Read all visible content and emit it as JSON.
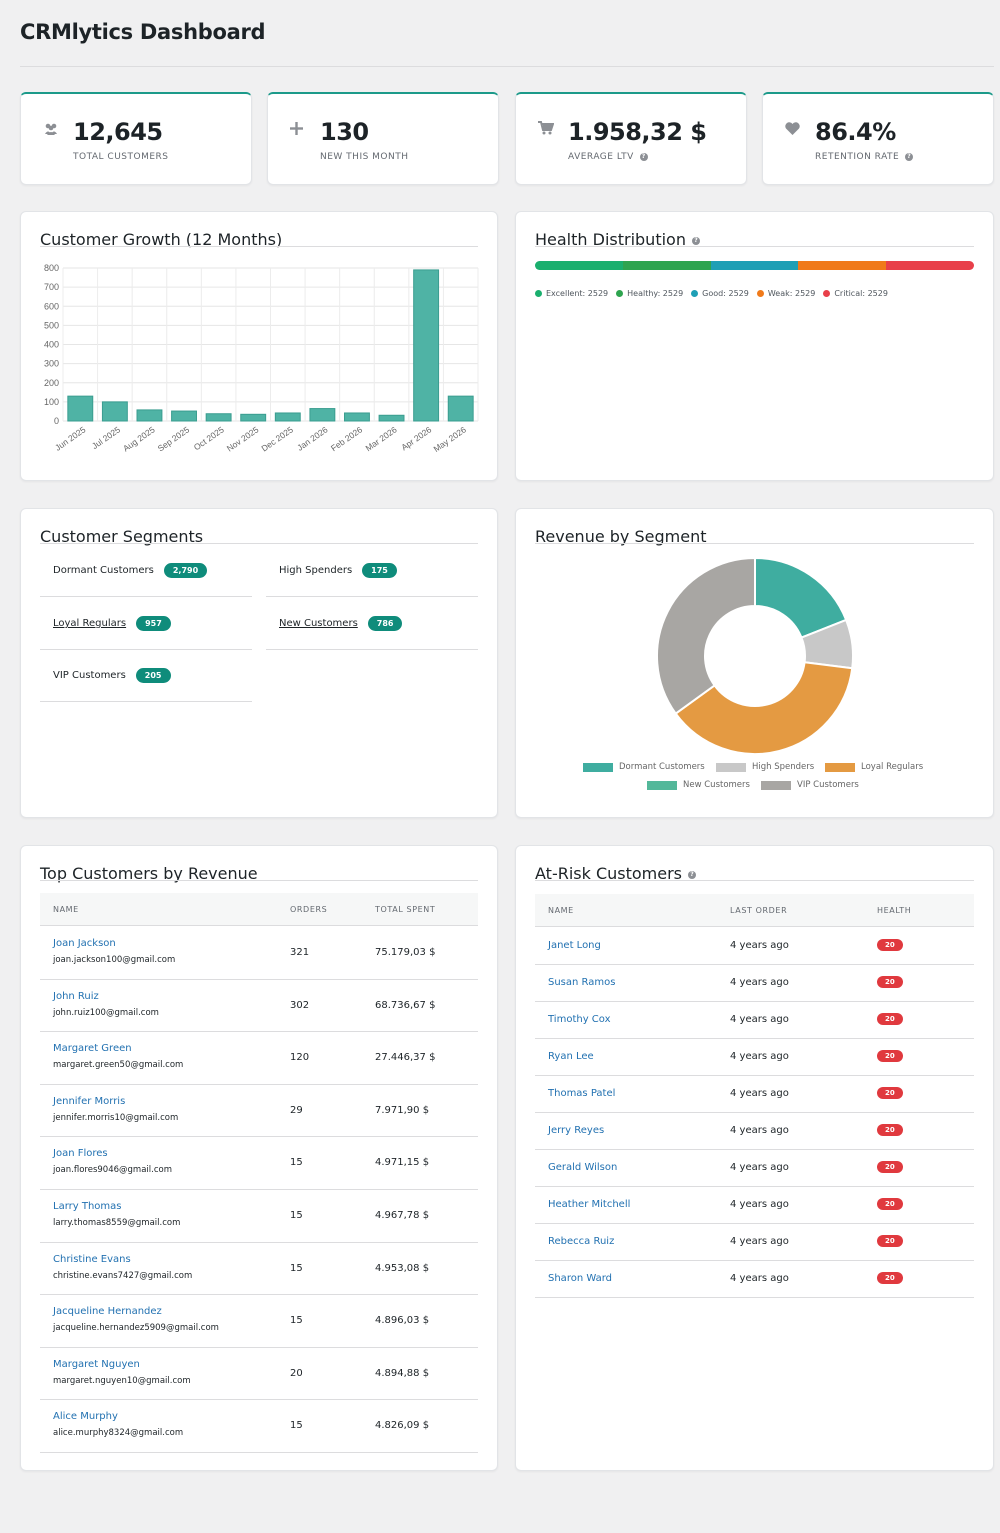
{
  "header": {
    "title": "CRMlytics Dashboard"
  },
  "kpis": [
    {
      "icon": "users-icon",
      "value": "12,645",
      "label": "TOTAL CUSTOMERS",
      "help": false
    },
    {
      "icon": "plus-icon",
      "value": "130",
      "label": "NEW THIS MONTH",
      "help": false
    },
    {
      "icon": "cart-icon",
      "value": "1.958,32 $",
      "label": "AVERAGE LTV",
      "help": true
    },
    {
      "icon": "heart-icon",
      "value": "86.4%",
      "label": "RETENTION RATE",
      "help": true
    }
  ],
  "growth": {
    "title": "Customer Growth (12 Months)"
  },
  "chart_data": {
    "type": "bar",
    "categories": [
      "Jun 2025",
      "Jul 2025",
      "Aug 2025",
      "Sep 2025",
      "Oct 2025",
      "Nov 2025",
      "Dec 2025",
      "Jan 2026",
      "Feb 2026",
      "Mar 2026",
      "Apr 2026",
      "May 2026"
    ],
    "values": [
      130,
      100,
      58,
      52,
      38,
      35,
      42,
      65,
      42,
      30,
      790,
      130
    ],
    "ylim": [
      0,
      800
    ],
    "yticks": [
      0,
      100,
      200,
      300,
      400,
      500,
      600,
      700,
      800
    ],
    "grid": true,
    "color": "#4fb3a5"
  },
  "health": {
    "title": "Health Distribution",
    "segments": [
      {
        "label": "Excellent: 2529",
        "color": "#1aaf6e"
      },
      {
        "label": "Healthy: 2529",
        "color": "#2ea44f"
      },
      {
        "label": "Good: 2529",
        "color": "#1e9fb5"
      },
      {
        "label": "Weak: 2529",
        "color": "#f07a1a"
      },
      {
        "label": "Critical: 2529",
        "color": "#e8404a"
      }
    ]
  },
  "segments": {
    "title": "Customer Segments",
    "items": [
      {
        "name": "Dormant Customers",
        "count": "2,790",
        "link": false
      },
      {
        "name": "High Spenders",
        "count": "175",
        "link": false
      },
      {
        "name": "Loyal Regulars",
        "count": "957",
        "link": true
      },
      {
        "name": "New Customers",
        "count": "786",
        "link": true
      },
      {
        "name": "VIP Customers",
        "count": "205",
        "link": false
      }
    ]
  },
  "revenue": {
    "title": "Revenue by Segment",
    "slices": [
      {
        "name": "Dormant Customers",
        "value": 19,
        "color": "#3fada0"
      },
      {
        "name": "High Spenders",
        "value": 8,
        "color": "#c8c8c8"
      },
      {
        "name": "Loyal Regulars",
        "value": 38,
        "color": "#e49a42"
      },
      {
        "name": "New Customers",
        "value": 0,
        "color": "#53b89a"
      },
      {
        "name": "VIP Customers",
        "value": 35,
        "color": "#a8a6a3"
      }
    ]
  },
  "top_customers": {
    "title": "Top Customers by Revenue",
    "columns": [
      "NAME",
      "ORDERS",
      "TOTAL SPENT"
    ],
    "rows": [
      {
        "name": "Joan Jackson",
        "email": "joan.jackson100@gmail.com",
        "orders": "321",
        "spent": "75.179,03 $"
      },
      {
        "name": "John Ruiz",
        "email": "john.ruiz100@gmail.com",
        "orders": "302",
        "spent": "68.736,67 $"
      },
      {
        "name": "Margaret Green",
        "email": "margaret.green50@gmail.com",
        "orders": "120",
        "spent": "27.446,37 $"
      },
      {
        "name": "Jennifer Morris",
        "email": "jennifer.morris10@gmail.com",
        "orders": "29",
        "spent": "7.971,90 $"
      },
      {
        "name": "Joan Flores",
        "email": "joan.flores9046@gmail.com",
        "orders": "15",
        "spent": "4.971,15 $"
      },
      {
        "name": "Larry Thomas",
        "email": "larry.thomas8559@gmail.com",
        "orders": "15",
        "spent": "4.967,78 $"
      },
      {
        "name": "Christine Evans",
        "email": "christine.evans7427@gmail.com",
        "orders": "15",
        "spent": "4.953,08 $"
      },
      {
        "name": "Jacqueline Hernandez",
        "email": "jacqueline.hernandez5909@gmail.com",
        "orders": "15",
        "spent": "4.896,03 $"
      },
      {
        "name": "Margaret Nguyen",
        "email": "margaret.nguyen10@gmail.com",
        "orders": "20",
        "spent": "4.894,88 $"
      },
      {
        "name": "Alice Murphy",
        "email": "alice.murphy8324@gmail.com",
        "orders": "15",
        "spent": "4.826,09 $"
      }
    ]
  },
  "at_risk": {
    "title": "At-Risk Customers",
    "columns": [
      "NAME",
      "LAST ORDER",
      "HEALTH"
    ],
    "rows": [
      {
        "name": "Janet Long",
        "last": "4 years ago",
        "health": "20"
      },
      {
        "name": "Susan Ramos",
        "last": "4 years ago",
        "health": "20"
      },
      {
        "name": "Timothy Cox",
        "last": "4 years ago",
        "health": "20"
      },
      {
        "name": "Ryan Lee",
        "last": "4 years ago",
        "health": "20"
      },
      {
        "name": "Thomas Patel",
        "last": "4 years ago",
        "health": "20"
      },
      {
        "name": "Jerry Reyes",
        "last": "4 years ago",
        "health": "20"
      },
      {
        "name": "Gerald Wilson",
        "last": "4 years ago",
        "health": "20"
      },
      {
        "name": "Heather Mitchell",
        "last": "4 years ago",
        "health": "20"
      },
      {
        "name": "Rebecca Ruiz",
        "last": "4 years ago",
        "health": "20"
      },
      {
        "name": "Sharon Ward",
        "last": "4 years ago",
        "health": "20"
      }
    ]
  }
}
